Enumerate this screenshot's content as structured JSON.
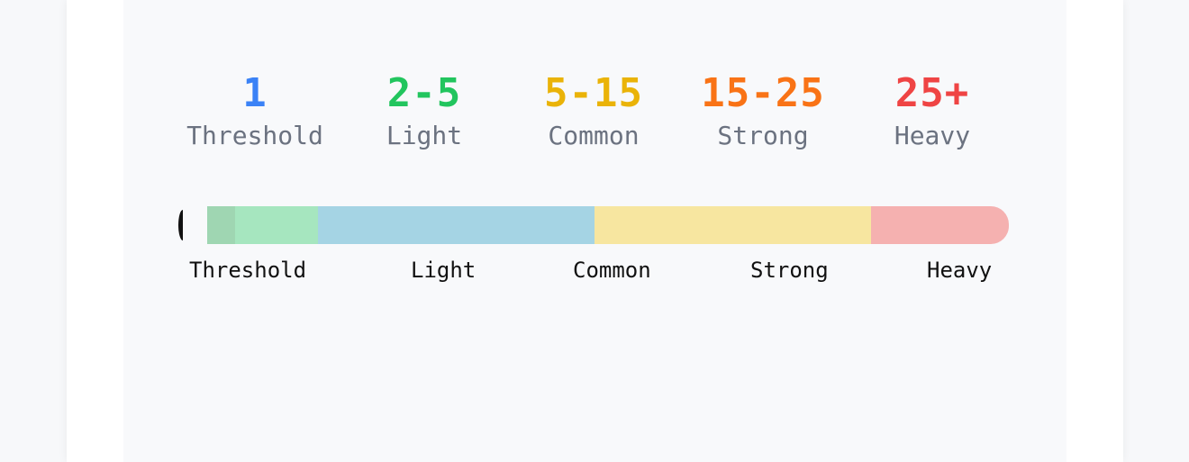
{
  "levels": [
    {
      "value": "1",
      "label": "Threshold",
      "color": "#3b82f6"
    },
    {
      "value": "2-5",
      "label": "Light",
      "color": "#22c55e"
    },
    {
      "value": "5-15",
      "label": "Common",
      "color": "#eab308"
    },
    {
      "value": "15-25",
      "label": "Strong",
      "color": "#f97316"
    },
    {
      "value": "25+",
      "label": "Heavy",
      "color": "#ef4444"
    }
  ],
  "scale": {
    "segment_colors": [
      "#9fd6b2",
      "#a6e6bf",
      "#a5d4e4",
      "#f7e6a0",
      "#f5b1b0"
    ],
    "labels": [
      "Threshold",
      "Light",
      "Common",
      "Strong",
      "Heavy"
    ]
  }
}
